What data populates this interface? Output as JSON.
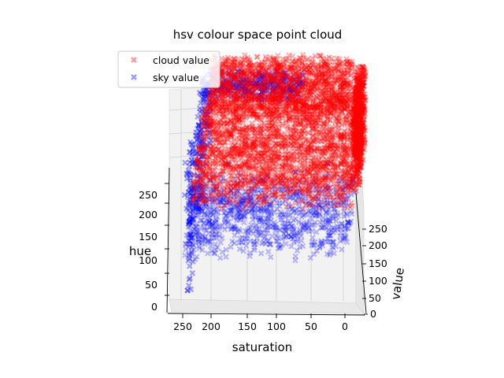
{
  "chart_data": {
    "type": "scatter",
    "projection": "3d",
    "title": "hsv colour space point cloud",
    "xlabel": "saturation",
    "ylabel": "value",
    "zlabel": "hue",
    "x_ticks": [
      250,
      200,
      150,
      100,
      50,
      0
    ],
    "y_ticks": [
      0,
      50,
      100,
      150,
      200,
      250
    ],
    "z_ticks": [
      0,
      50,
      100,
      150,
      200,
      250
    ],
    "xlim": [
      0,
      265
    ],
    "ylim": [
      0,
      265
    ],
    "zlim": [
      0,
      265
    ],
    "grid": true,
    "legend_position": "top-left",
    "marker": "X",
    "series": [
      {
        "name": "cloud value",
        "color": "#ff0000",
        "alpha": 0.3,
        "description_points": [
          {
            "saturation": 260,
            "value": 80,
            "hue": 110
          },
          {
            "saturation": 260,
            "value": 140,
            "hue": 130
          },
          {
            "saturation": 230,
            "value": 180,
            "hue": 150
          },
          {
            "saturation": 200,
            "value": 210,
            "hue": 150
          },
          {
            "saturation": 150,
            "value": 230,
            "hue": 145
          },
          {
            "saturation": 100,
            "value": 245,
            "hue": 140
          },
          {
            "saturation": 50,
            "value": 250,
            "hue": 130
          },
          {
            "saturation": 10,
            "value": 255,
            "hue": 120
          },
          {
            "saturation": 5,
            "value": 255,
            "hue": 60
          },
          {
            "saturation": 5,
            "value": 255,
            "hue": 250
          },
          {
            "saturation": 120,
            "value": 245,
            "hue": 20
          },
          {
            "saturation": 200,
            "value": 230,
            "hue": 20
          },
          {
            "saturation": 240,
            "value": 220,
            "hue": 25
          },
          {
            "saturation": 30,
            "value": 230,
            "hue": 30
          },
          {
            "saturation": 80,
            "value": 200,
            "hue": 10
          }
        ]
      },
      {
        "name": "sky value",
        "color": "#0000ff",
        "alpha": 0.3,
        "description_points": [
          {
            "saturation": 260,
            "value": 30,
            "hue": 120
          },
          {
            "saturation": 260,
            "value": 60,
            "hue": 60
          },
          {
            "saturation": 260,
            "value": 10,
            "hue": 20
          },
          {
            "saturation": 255,
            "value": 120,
            "hue": 230
          },
          {
            "saturation": 240,
            "value": 200,
            "hue": 235
          },
          {
            "saturation": 200,
            "value": 230,
            "hue": 230
          },
          {
            "saturation": 150,
            "value": 240,
            "hue": 220
          },
          {
            "saturation": 100,
            "value": 245,
            "hue": 210
          },
          {
            "saturation": 200,
            "value": 100,
            "hue": 110
          },
          {
            "saturation": 150,
            "value": 120,
            "hue": 110
          },
          {
            "saturation": 100,
            "value": 140,
            "hue": 105
          },
          {
            "saturation": 50,
            "value": 160,
            "hue": 100
          },
          {
            "saturation": 5,
            "value": 130,
            "hue": 100
          },
          {
            "saturation": 5,
            "value": 60,
            "hue": 90
          },
          {
            "saturation": 200,
            "value": 60,
            "hue": 200
          },
          {
            "saturation": 100,
            "value": 80,
            "hue": 40
          }
        ]
      }
    ]
  }
}
